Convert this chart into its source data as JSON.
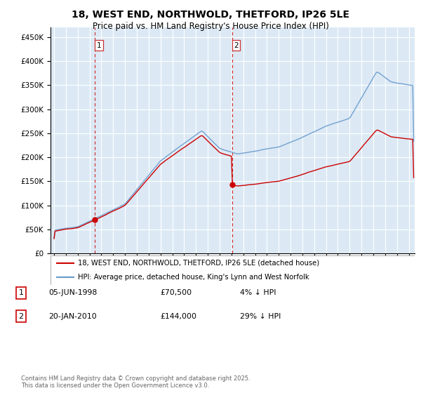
{
  "title": "18, WEST END, NORTHWOLD, THETFORD, IP26 5LE",
  "subtitle": "Price paid vs. HM Land Registry's House Price Index (HPI)",
  "ylim": [
    0,
    470000
  ],
  "yticks": [
    0,
    50000,
    100000,
    150000,
    200000,
    250000,
    300000,
    350000,
    400000,
    450000
  ],
  "xlim_start": 1994.7,
  "xlim_end": 2025.5,
  "background_color": "#ffffff",
  "plot_bg_color": "#dce9f5",
  "grid_color": "#ffffff",
  "sale1_x": 1998.43,
  "sale1_y": 70500,
  "sale2_x": 2010.05,
  "sale2_y": 144000,
  "legend_line1": "18, WEST END, NORTHWOLD, THETFORD, IP26 5LE (detached house)",
  "legend_line2": "HPI: Average price, detached house, King's Lynn and West Norfolk",
  "footer": "Contains HM Land Registry data © Crown copyright and database right 2025.\nThis data is licensed under the Open Government Licence v3.0.",
  "table_rows": [
    {
      "num": "1",
      "date": "05-JUN-1998",
      "price": "£70,500",
      "pct": "4% ↓ HPI"
    },
    {
      "num": "2",
      "date": "20-JAN-2010",
      "price": "£144,000",
      "pct": "29% ↓ HPI"
    }
  ],
  "red_line_color": "#cc0000",
  "blue_line_color": "#6699cc",
  "vline_color": "#cc0000"
}
